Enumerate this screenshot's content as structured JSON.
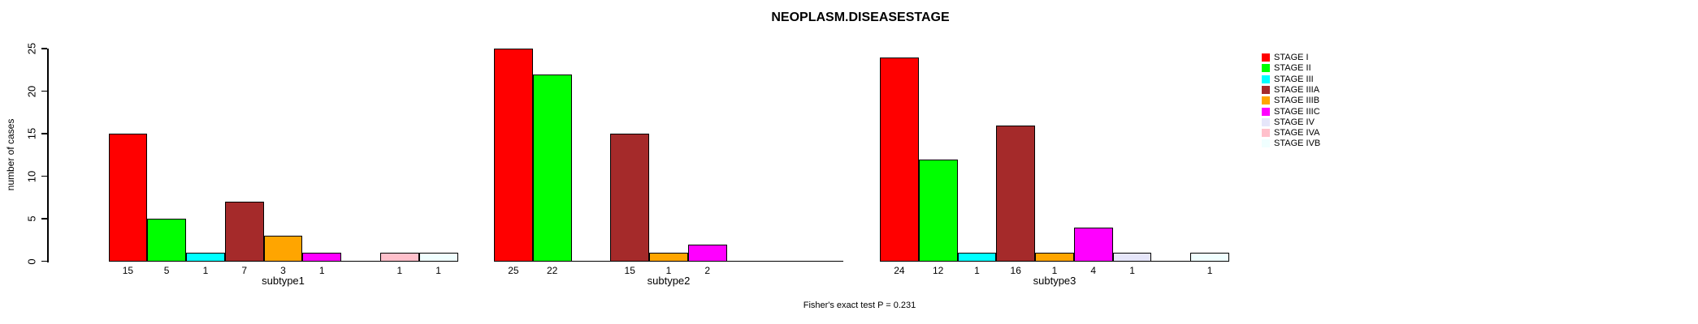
{
  "chart_data": {
    "type": "bar",
    "title": "NEOPLASM.DISEASESTAGE",
    "ylabel": "number of cases",
    "xlabel": "",
    "ylim": [
      0,
      25
    ],
    "yticks": [
      0,
      5,
      10,
      15,
      20,
      25
    ],
    "grid": false,
    "legend_position": "right",
    "footnote": "Fisher's exact test P = 0.231",
    "categories": [
      "subtype1",
      "subtype2",
      "subtype3"
    ],
    "series": [
      {
        "name": "STAGE I",
        "color": "#FF0000",
        "values": [
          15,
          25,
          24
        ]
      },
      {
        "name": "STAGE II",
        "color": "#00FF00",
        "values": [
          5,
          22,
          12
        ]
      },
      {
        "name": "STAGE III",
        "color": "#00FFFF",
        "values": [
          1,
          0,
          1
        ]
      },
      {
        "name": "STAGE IIIA",
        "color": "#A52A2A",
        "values": [
          7,
          15,
          16
        ]
      },
      {
        "name": "STAGE IIIB",
        "color": "#FFA500",
        "values": [
          3,
          1,
          1
        ]
      },
      {
        "name": "STAGE IIIC",
        "color": "#FF00FF",
        "values": [
          1,
          2,
          4
        ]
      },
      {
        "name": "STAGE IV",
        "color": "#E6E6FA",
        "values": [
          0,
          0,
          1
        ]
      },
      {
        "name": "STAGE IVA",
        "color": "#FFC0CB",
        "values": [
          1,
          0,
          0
        ]
      },
      {
        "name": "STAGE IVB",
        "color": "#F0FFFF",
        "values": [
          1,
          0,
          1
        ]
      }
    ]
  }
}
